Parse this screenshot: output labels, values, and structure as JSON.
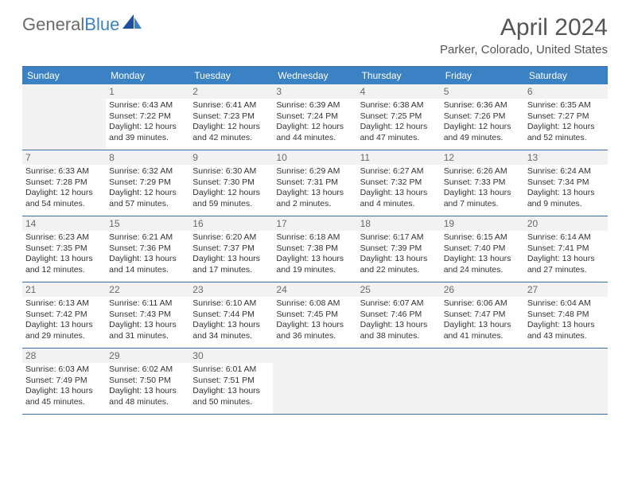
{
  "logo": {
    "part1": "General",
    "part2": "Blue"
  },
  "title": "April 2024",
  "location": "Parker, Colorado, United States",
  "header_color": "#3b82c4",
  "border_color": "#3b6ea5",
  "empty_bg": "#f2f2f2",
  "text_color": "#333333",
  "dow": [
    "Sunday",
    "Monday",
    "Tuesday",
    "Wednesday",
    "Thursday",
    "Friday",
    "Saturday"
  ],
  "weeks": [
    [
      null,
      {
        "n": "1",
        "r": "6:43 AM",
        "s": "7:22 PM",
        "d1": "Daylight: 12 hours",
        "d2": "and 39 minutes."
      },
      {
        "n": "2",
        "r": "6:41 AM",
        "s": "7:23 PM",
        "d1": "Daylight: 12 hours",
        "d2": "and 42 minutes."
      },
      {
        "n": "3",
        "r": "6:39 AM",
        "s": "7:24 PM",
        "d1": "Daylight: 12 hours",
        "d2": "and 44 minutes."
      },
      {
        "n": "4",
        "r": "6:38 AM",
        "s": "7:25 PM",
        "d1": "Daylight: 12 hours",
        "d2": "and 47 minutes."
      },
      {
        "n": "5",
        "r": "6:36 AM",
        "s": "7:26 PM",
        "d1": "Daylight: 12 hours",
        "d2": "and 49 minutes."
      },
      {
        "n": "6",
        "r": "6:35 AM",
        "s": "7:27 PM",
        "d1": "Daylight: 12 hours",
        "d2": "and 52 minutes."
      }
    ],
    [
      {
        "n": "7",
        "r": "6:33 AM",
        "s": "7:28 PM",
        "d1": "Daylight: 12 hours",
        "d2": "and 54 minutes."
      },
      {
        "n": "8",
        "r": "6:32 AM",
        "s": "7:29 PM",
        "d1": "Daylight: 12 hours",
        "d2": "and 57 minutes."
      },
      {
        "n": "9",
        "r": "6:30 AM",
        "s": "7:30 PM",
        "d1": "Daylight: 12 hours",
        "d2": "and 59 minutes."
      },
      {
        "n": "10",
        "r": "6:29 AM",
        "s": "7:31 PM",
        "d1": "Daylight: 13 hours",
        "d2": "and 2 minutes."
      },
      {
        "n": "11",
        "r": "6:27 AM",
        "s": "7:32 PM",
        "d1": "Daylight: 13 hours",
        "d2": "and 4 minutes."
      },
      {
        "n": "12",
        "r": "6:26 AM",
        "s": "7:33 PM",
        "d1": "Daylight: 13 hours",
        "d2": "and 7 minutes."
      },
      {
        "n": "13",
        "r": "6:24 AM",
        "s": "7:34 PM",
        "d1": "Daylight: 13 hours",
        "d2": "and 9 minutes."
      }
    ],
    [
      {
        "n": "14",
        "r": "6:23 AM",
        "s": "7:35 PM",
        "d1": "Daylight: 13 hours",
        "d2": "and 12 minutes."
      },
      {
        "n": "15",
        "r": "6:21 AM",
        "s": "7:36 PM",
        "d1": "Daylight: 13 hours",
        "d2": "and 14 minutes."
      },
      {
        "n": "16",
        "r": "6:20 AM",
        "s": "7:37 PM",
        "d1": "Daylight: 13 hours",
        "d2": "and 17 minutes."
      },
      {
        "n": "17",
        "r": "6:18 AM",
        "s": "7:38 PM",
        "d1": "Daylight: 13 hours",
        "d2": "and 19 minutes."
      },
      {
        "n": "18",
        "r": "6:17 AM",
        "s": "7:39 PM",
        "d1": "Daylight: 13 hours",
        "d2": "and 22 minutes."
      },
      {
        "n": "19",
        "r": "6:15 AM",
        "s": "7:40 PM",
        "d1": "Daylight: 13 hours",
        "d2": "and 24 minutes."
      },
      {
        "n": "20",
        "r": "6:14 AM",
        "s": "7:41 PM",
        "d1": "Daylight: 13 hours",
        "d2": "and 27 minutes."
      }
    ],
    [
      {
        "n": "21",
        "r": "6:13 AM",
        "s": "7:42 PM",
        "d1": "Daylight: 13 hours",
        "d2": "and 29 minutes."
      },
      {
        "n": "22",
        "r": "6:11 AM",
        "s": "7:43 PM",
        "d1": "Daylight: 13 hours",
        "d2": "and 31 minutes."
      },
      {
        "n": "23",
        "r": "6:10 AM",
        "s": "7:44 PM",
        "d1": "Daylight: 13 hours",
        "d2": "and 34 minutes."
      },
      {
        "n": "24",
        "r": "6:08 AM",
        "s": "7:45 PM",
        "d1": "Daylight: 13 hours",
        "d2": "and 36 minutes."
      },
      {
        "n": "25",
        "r": "6:07 AM",
        "s": "7:46 PM",
        "d1": "Daylight: 13 hours",
        "d2": "and 38 minutes."
      },
      {
        "n": "26",
        "r": "6:06 AM",
        "s": "7:47 PM",
        "d1": "Daylight: 13 hours",
        "d2": "and 41 minutes."
      },
      {
        "n": "27",
        "r": "6:04 AM",
        "s": "7:48 PM",
        "d1": "Daylight: 13 hours",
        "d2": "and 43 minutes."
      }
    ],
    [
      {
        "n": "28",
        "r": "6:03 AM",
        "s": "7:49 PM",
        "d1": "Daylight: 13 hours",
        "d2": "and 45 minutes."
      },
      {
        "n": "29",
        "r": "6:02 AM",
        "s": "7:50 PM",
        "d1": "Daylight: 13 hours",
        "d2": "and 48 minutes."
      },
      {
        "n": "30",
        "r": "6:01 AM",
        "s": "7:51 PM",
        "d1": "Daylight: 13 hours",
        "d2": "and 50 minutes."
      },
      null,
      null,
      null,
      null
    ]
  ]
}
